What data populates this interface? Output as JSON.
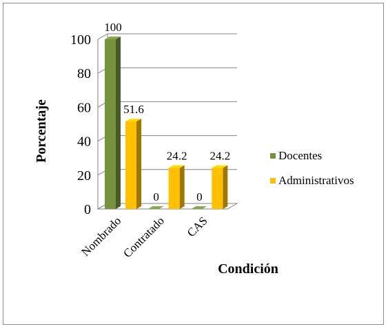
{
  "chart_data": {
    "type": "bar",
    "categories": [
      "Nombrado",
      "Contratado",
      "CAS"
    ],
    "series": [
      {
        "name": "Docentes",
        "values": [
          100,
          0,
          0
        ],
        "color": "#76923C"
      },
      {
        "name": "Administrativos",
        "values": [
          51.6,
          24.2,
          24.2
        ],
        "color": "#FFC000"
      }
    ],
    "data_labels": [
      [
        "100",
        "0",
        "0"
      ],
      [
        "51.6",
        "24.2",
        "24.2"
      ]
    ],
    "y_ticks": [
      "0",
      "20",
      "40",
      "60",
      "80",
      "100"
    ],
    "ylim": [
      0,
      100
    ],
    "ylabel": "Porcentaje",
    "xlabel": "Condición",
    "grid": true,
    "legend_position": "right",
    "style": "3d-clustered"
  }
}
